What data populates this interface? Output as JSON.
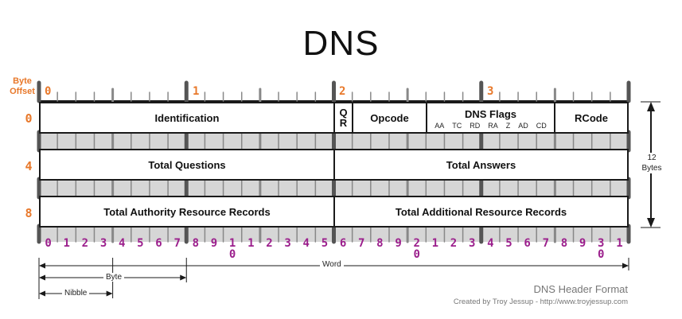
{
  "title": "DNS",
  "byte_offset_label": [
    "Byte",
    "Offset"
  ],
  "top_offsets": [
    "0",
    "1",
    "2",
    "3"
  ],
  "row_offsets": [
    "0",
    "4",
    "8"
  ],
  "row0": {
    "identification": "Identification",
    "qr": [
      "Q",
      "R"
    ],
    "opcode": "Opcode",
    "dns_flags": "DNS Flags",
    "flags": [
      "AA",
      "TC",
      "RD",
      "RA",
      "Z",
      "AD",
      "CD"
    ],
    "rcode": "RCode"
  },
  "row1": {
    "left": "Total Questions",
    "right": "Total Answers"
  },
  "row2": {
    "left": "Total Authority Resource Records",
    "right": "Total Additional Resource Records"
  },
  "bit_numbers": [
    "0",
    "1",
    "2",
    "3",
    "4",
    "5",
    "6",
    "7",
    "8",
    "9",
    "1",
    "1",
    "2",
    "3",
    "4",
    "5",
    "6",
    "7",
    "8",
    "9",
    "2",
    "1",
    "2",
    "3",
    "4",
    "5",
    "6",
    "7",
    "8",
    "9",
    "3",
    "1"
  ],
  "bit_numbers_second_line": [
    "0",
    "0",
    "0"
  ],
  "size_label": [
    "12",
    "Bytes"
  ],
  "word_label": "Word",
  "byte_label": "Byte",
  "nibble_label": "Nibble",
  "footer": {
    "title": "DNS Header Format",
    "credit": "Created by Troy Jessup - http://www.troyjessup.com"
  },
  "colors": {
    "offset": "#e8782a",
    "bits": "#9b1f8c",
    "border": "#1a1a1a"
  }
}
